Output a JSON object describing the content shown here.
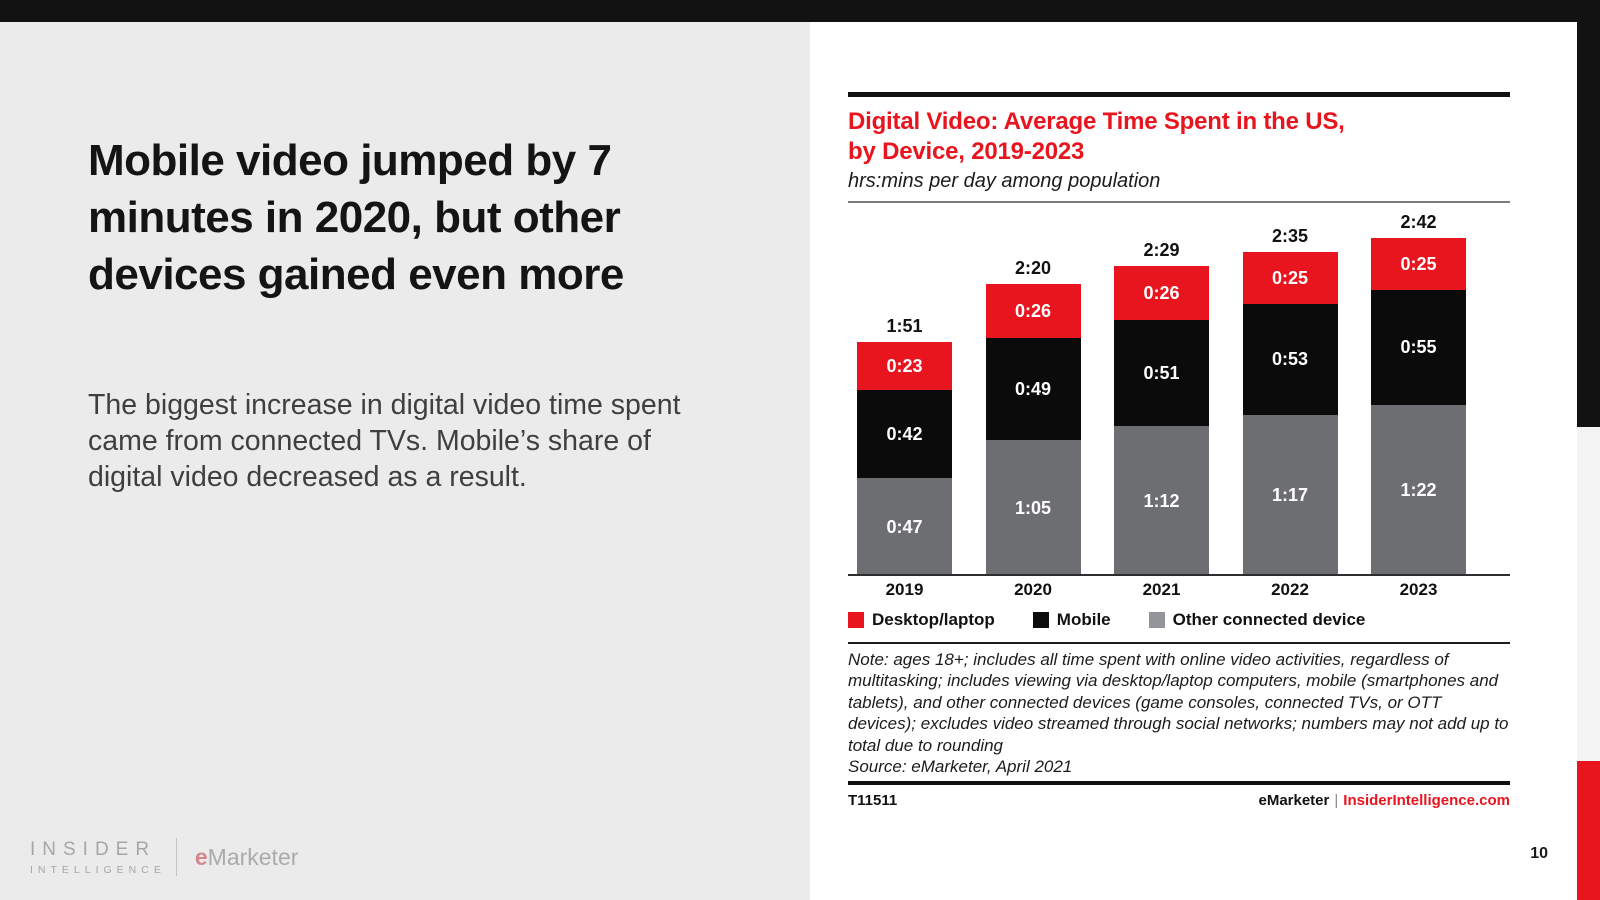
{
  "slide": {
    "headline": "Mobile video jumped by 7 minutes in 2020, but other devices gained even more",
    "body": "The biggest increase in digital video time spent came from connected TVs. Mobile’s share of digital video decreased as a result.",
    "page_number": "10"
  },
  "logo": {
    "insider_line1": "INSIDER",
    "insider_line2": "INTELLIGENCE",
    "emarketer_e": "e",
    "emarketer_rest": "Marketer"
  },
  "chart_data": {
    "type": "bar",
    "stacked": true,
    "title_lines": [
      "Digital Video: Average Time Spent in the US,",
      "by Device, 2019-2023"
    ],
    "subtitle": "hrs:mins per day among population",
    "categories": [
      "2019",
      "2020",
      "2021",
      "2022",
      "2023"
    ],
    "totals": [
      "1:51",
      "2:20",
      "2:29",
      "2:35",
      "2:42"
    ],
    "total_minutes": [
      111,
      140,
      149,
      155,
      162
    ],
    "unit": "hrs:mins",
    "legend_position": "bottom",
    "grid": false,
    "series": [
      {
        "name": "Desktop/laptop",
        "labels": [
          "0:23",
          "0:26",
          "0:26",
          "0:25",
          "0:25"
        ],
        "minutes": [
          23,
          26,
          26,
          25,
          25
        ],
        "color": "#e8141e",
        "legend_color": "#e8141e"
      },
      {
        "name": "Mobile",
        "labels": [
          "0:42",
          "0:49",
          "0:51",
          "0:53",
          "0:55"
        ],
        "minutes": [
          42,
          49,
          51,
          53,
          55
        ],
        "color": "#0b0b0b",
        "legend_color": "#0b0b0b"
      },
      {
        "name": "Other connected device",
        "labels": [
          "0:47",
          "1:05",
          "1:12",
          "1:17",
          "1:22"
        ],
        "minutes": [
          47,
          65,
          72,
          77,
          82
        ],
        "color": "#6d6e71",
        "legend_color": "#939598"
      }
    ]
  },
  "note": {
    "text": "Note: ages 18+; includes all time spent with online video activities, regardless of multitasking; includes viewing via desktop/laptop computers, mobile (smartphones and tablets), and other connected devices (game consoles, connected TVs, or OTT devices); excludes video streamed through social networks; numbers may not add up to total due to rounding",
    "source": "Source: eMarketer, April 2021"
  },
  "footer": {
    "chart_id": "T11511",
    "brand": "eMarketer",
    "separator": "|",
    "site": "InsiderIntelligence.com"
  },
  "colors": {
    "accent_red": "#e8141e",
    "panel_gray": "#ebebeb",
    "top_bar": "#121212"
  }
}
